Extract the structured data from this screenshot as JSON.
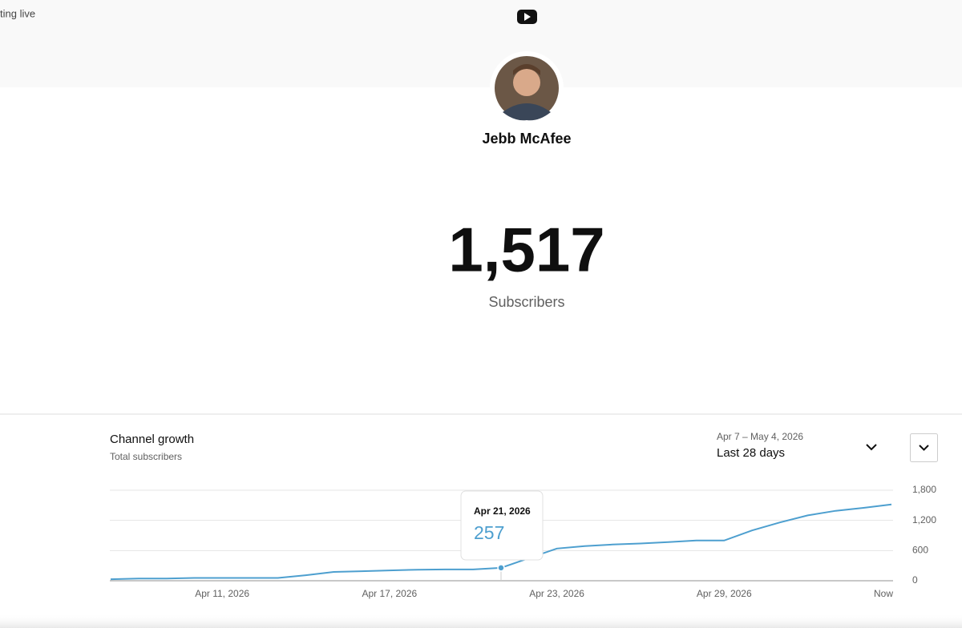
{
  "header": {
    "partial_text": "ting live"
  },
  "channel": {
    "name": "Jebb McAfee",
    "subscriber_count": "1,517",
    "subscriber_label": "Subscribers"
  },
  "date_picker": {
    "range": "Apr 7 – May 4, 2026",
    "period": "Last 28 days"
  },
  "chart_data": {
    "type": "line",
    "title": "Channel growth",
    "subtitle": "Total subscribers",
    "categories": [
      null,
      null,
      null,
      null,
      "Apr 11, 2026",
      null,
      null,
      null,
      null,
      null,
      "Apr 17, 2026",
      null,
      null,
      null,
      null,
      null,
      "Apr 23, 2026",
      null,
      null,
      null,
      null,
      null,
      "Apr 29, 2026",
      null,
      null,
      null,
      null,
      null,
      "Now"
    ],
    "values": [
      30,
      45,
      45,
      55,
      55,
      55,
      55,
      110,
      175,
      190,
      205,
      220,
      225,
      225,
      257,
      450,
      640,
      690,
      720,
      740,
      770,
      800,
      800,
      1000,
      1160,
      1300,
      1390,
      1450,
      1517
    ],
    "color": "#4d9fcf",
    "ylim": [
      0,
      1800
    ],
    "yticks": [
      0,
      {
        "value": 600,
        "label": "600"
      },
      {
        "value": 1200,
        "label": "1,200"
      },
      {
        "value": 1800,
        "label": "1,800"
      }
    ],
    "grid": true,
    "tooltip": {
      "index": 14,
      "label": "Apr 21, 2026",
      "value": 257
    }
  }
}
